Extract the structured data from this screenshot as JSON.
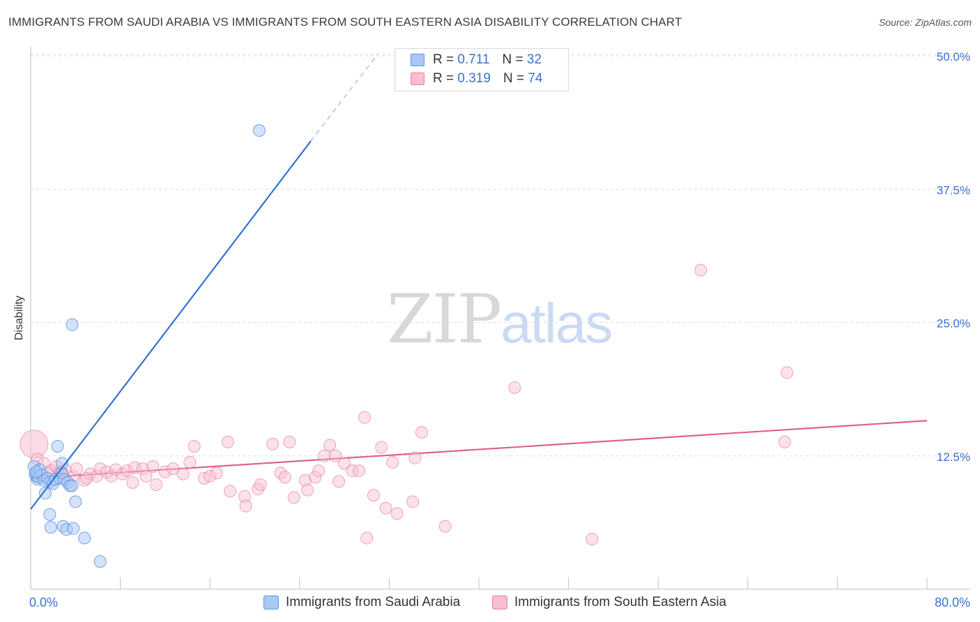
{
  "chart_data": {
    "type": "scatter",
    "title": "IMMIGRANTS FROM SAUDI ARABIA VS IMMIGRANTS FROM SOUTH EASTERN ASIA DISABILITY CORRELATION CHART",
    "source": "Source: ZipAtlas.com",
    "ylabel": "Disability",
    "xlim": [
      0,
      80
    ],
    "ylim": [
      0,
      50
    ],
    "x_tick_labels": [
      "0.0%",
      "80.0%"
    ],
    "y_tick_values": [
      12.5,
      25.0,
      37.5,
      50.0
    ],
    "y_tick_labels": [
      "12.5%",
      "25.0%",
      "37.5%",
      "50.0%"
    ],
    "watermark": {
      "left": "ZIP",
      "right": "atlas"
    },
    "legend_stats": [
      {
        "r_label": "R =",
        "r_value": "0.711",
        "n_label": "N =",
        "n_value": "32"
      },
      {
        "r_label": "R =",
        "r_value": "0.319",
        "n_label": "N =",
        "n_value": "74"
      }
    ],
    "series": [
      {
        "name": "Immigrants from Saudi Arabia",
        "color": "#5b93e0",
        "fill": "#a9c8f3",
        "trend": {
          "x0": 0,
          "y0": 7.5,
          "x1": 25,
          "y1": 42,
          "x_dash_end": 31,
          "y_dash_end": 50.2
        },
        "points": [
          [
            0.3,
            11.5
          ],
          [
            0.4,
            10.8
          ],
          [
            0.5,
            10.6
          ],
          [
            0.6,
            10.3
          ],
          [
            0.7,
            10.5
          ],
          [
            0.8,
            11.2
          ],
          [
            1.0,
            10.7
          ],
          [
            1.2,
            10.2
          ],
          [
            1.3,
            9.0
          ],
          [
            1.5,
            10.4
          ],
          [
            1.8,
            10.1
          ],
          [
            2.0,
            9.9
          ],
          [
            2.2,
            10.3
          ],
          [
            1.7,
            7.0
          ],
          [
            1.8,
            5.8
          ],
          [
            2.6,
            10.4
          ],
          [
            2.8,
            10.9
          ],
          [
            3.0,
            10.3
          ],
          [
            2.4,
            13.4
          ],
          [
            2.8,
            11.8
          ],
          [
            2.9,
            5.9
          ],
          [
            3.2,
            5.6
          ],
          [
            3.3,
            10.0
          ],
          [
            3.5,
            9.7
          ],
          [
            3.7,
            9.7
          ],
          [
            3.8,
            5.7
          ],
          [
            3.7,
            24.8
          ],
          [
            4.0,
            8.2
          ],
          [
            4.8,
            4.8
          ],
          [
            6.2,
            2.6
          ],
          [
            20.4,
            43.0
          ],
          [
            0.5,
            11.0
          ]
        ]
      },
      {
        "name": "Immigrants from South Eastern Asia",
        "color": "#e87ea1",
        "fill": "#f7bfd1",
        "trend": {
          "x0": 0,
          "y0": 10.4,
          "x1": 80,
          "y1": 15.8
        },
        "points": [
          [
            0.3,
            13.6
          ],
          [
            0.6,
            12.2
          ],
          [
            1.2,
            11.8
          ],
          [
            1.8,
            11.1
          ],
          [
            2.3,
            11.5
          ],
          [
            2.6,
            11.0
          ],
          [
            3.1,
            11.2
          ],
          [
            3.8,
            10.6
          ],
          [
            4.1,
            11.3
          ],
          [
            4.8,
            10.2
          ],
          [
            5.3,
            10.8
          ],
          [
            5.9,
            10.6
          ],
          [
            6.2,
            11.3
          ],
          [
            6.8,
            11.0
          ],
          [
            7.2,
            10.6
          ],
          [
            7.6,
            11.2
          ],
          [
            8.2,
            10.8
          ],
          [
            8.6,
            11.1
          ],
          [
            9.1,
            10.0
          ],
          [
            9.3,
            11.4
          ],
          [
            10.0,
            11.3
          ],
          [
            10.3,
            10.6
          ],
          [
            10.9,
            11.5
          ],
          [
            11.2,
            9.8
          ],
          [
            12.0,
            11.0
          ],
          [
            12.7,
            11.3
          ],
          [
            13.6,
            10.8
          ],
          [
            14.2,
            11.9
          ],
          [
            14.6,
            13.4
          ],
          [
            15.5,
            10.4
          ],
          [
            16.0,
            10.6
          ],
          [
            16.6,
            10.9
          ],
          [
            17.6,
            13.8
          ],
          [
            17.8,
            9.2
          ],
          [
            19.1,
            8.7
          ],
          [
            19.2,
            7.8
          ],
          [
            20.3,
            9.4
          ],
          [
            20.5,
            9.8
          ],
          [
            21.6,
            13.6
          ],
          [
            22.3,
            10.9
          ],
          [
            22.7,
            10.5
          ],
          [
            23.1,
            13.8
          ],
          [
            23.5,
            8.6
          ],
          [
            24.5,
            10.2
          ],
          [
            24.7,
            9.3
          ],
          [
            25.4,
            10.5
          ],
          [
            25.7,
            11.1
          ],
          [
            26.2,
            12.5
          ],
          [
            26.7,
            13.5
          ],
          [
            27.2,
            12.5
          ],
          [
            27.5,
            10.1
          ],
          [
            28.0,
            11.8
          ],
          [
            28.7,
            11.1
          ],
          [
            29.3,
            11.1
          ],
          [
            29.8,
            16.1
          ],
          [
            30.0,
            4.8
          ],
          [
            30.6,
            8.8
          ],
          [
            31.3,
            13.3
          ],
          [
            31.7,
            7.6
          ],
          [
            32.3,
            11.9
          ],
          [
            32.7,
            7.1
          ],
          [
            34.1,
            8.2
          ],
          [
            34.3,
            12.3
          ],
          [
            34.9,
            14.7
          ],
          [
            37.0,
            5.9
          ],
          [
            43.2,
            18.9
          ],
          [
            50.1,
            4.7
          ],
          [
            59.8,
            29.9
          ],
          [
            67.5,
            20.3
          ],
          [
            67.3,
            13.8
          ],
          [
            0.5,
            10.6
          ],
          [
            1.5,
            10.9
          ],
          [
            2.7,
            10.9
          ],
          [
            5.0,
            10.4
          ]
        ]
      }
    ]
  }
}
